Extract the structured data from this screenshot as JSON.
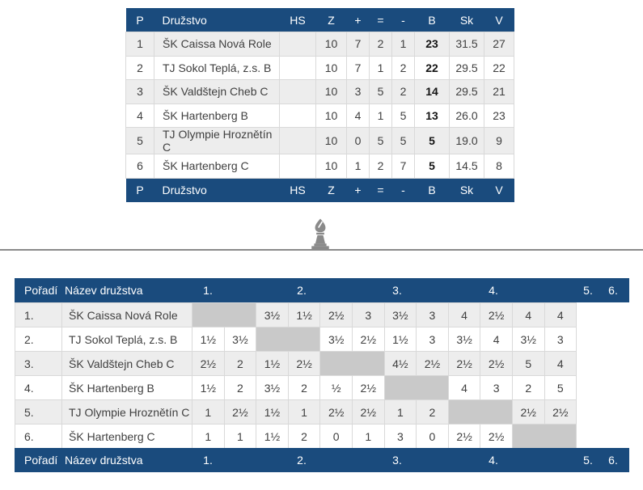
{
  "colors": {
    "header_bg": "#1a4b7d",
    "header_text": "#ffffff",
    "row_odd": "#ededed",
    "row_even": "#ffffff",
    "diagonal_cell": "#c9c9c9",
    "border": "#d9d9d9",
    "text": "#3f3f3f",
    "divider": "#8a8a8a"
  },
  "standings_table": {
    "columns": [
      "P",
      "Družstvo",
      "HS",
      "Z",
      "+",
      "=",
      "-",
      "B",
      "Sk",
      "V"
    ],
    "rows": [
      {
        "p": "1",
        "team": "ŠK Caissa Nová Role",
        "hs": "",
        "z": "10",
        "plus": "7",
        "eq": "2",
        "minus": "1",
        "b": "23",
        "sk": "31.5",
        "v": "27"
      },
      {
        "p": "2",
        "team": "TJ Sokol Teplá, z.s. B",
        "hs": "",
        "z": "10",
        "plus": "7",
        "eq": "1",
        "minus": "2",
        "b": "22",
        "sk": "29.5",
        "v": "22"
      },
      {
        "p": "3",
        "team": "ŠK Valdštejn Cheb C",
        "hs": "",
        "z": "10",
        "plus": "3",
        "eq": "5",
        "minus": "2",
        "b": "14",
        "sk": "29.5",
        "v": "21"
      },
      {
        "p": "4",
        "team": "ŠK Hartenberg B",
        "hs": "",
        "z": "10",
        "plus": "4",
        "eq": "1",
        "minus": "5",
        "b": "13",
        "sk": "26.0",
        "v": "23"
      },
      {
        "p": "5",
        "team": "TJ Olympie Hroznětín C",
        "hs": "",
        "z": "10",
        "plus": "0",
        "eq": "5",
        "minus": "5",
        "b": "5",
        "sk": "19.0",
        "v": "9"
      },
      {
        "p": "6",
        "team": "ŠK Hartenberg C",
        "hs": "",
        "z": "10",
        "plus": "1",
        "eq": "2",
        "minus": "7",
        "b": "5",
        "sk": "14.5",
        "v": "8"
      }
    ]
  },
  "divider": {
    "icon": "chess-bishop-icon"
  },
  "crosstable": {
    "rank_header": "Pořadí",
    "name_header": "Název družstva",
    "round_headers": [
      "1.",
      "2.",
      "3.",
      "4.",
      "5.",
      "6."
    ],
    "rows": [
      {
        "rank": "1.",
        "team": "ŠK Caissa Nová Role",
        "diag_index": 0,
        "results": [
          "3½",
          "1½",
          "2½",
          "3",
          "3½",
          "3",
          "4",
          "2½",
          "4",
          "4"
        ]
      },
      {
        "rank": "2.",
        "team": "TJ Sokol Teplá, z.s. B",
        "diag_index": 1,
        "results": [
          "1½",
          "3½",
          "3½",
          "2½",
          "1½",
          "3",
          "3½",
          "4",
          "3½",
          "3"
        ]
      },
      {
        "rank": "3.",
        "team": "ŠK Valdštejn Cheb C",
        "diag_index": 2,
        "results": [
          "2½",
          "2",
          "1½",
          "2½",
          "4½",
          "2½",
          "2½",
          "2½",
          "5",
          "4"
        ]
      },
      {
        "rank": "4.",
        "team": "ŠK Hartenberg B",
        "diag_index": 3,
        "results": [
          "1½",
          "2",
          "3½",
          "2",
          "½",
          "2½",
          "4",
          "3",
          "2",
          "5"
        ]
      },
      {
        "rank": "5.",
        "team": "TJ Olympie Hroznětín C",
        "diag_index": 4,
        "results": [
          "1",
          "2½",
          "1½",
          "1",
          "2½",
          "2½",
          "1",
          "2",
          "2½",
          "2½"
        ]
      },
      {
        "rank": "6.",
        "team": "ŠK Hartenberg C",
        "diag_index": 5,
        "results": [
          "1",
          "1",
          "1½",
          "2",
          "0",
          "1",
          "3",
          "0",
          "2½",
          "2½"
        ]
      }
    ]
  }
}
